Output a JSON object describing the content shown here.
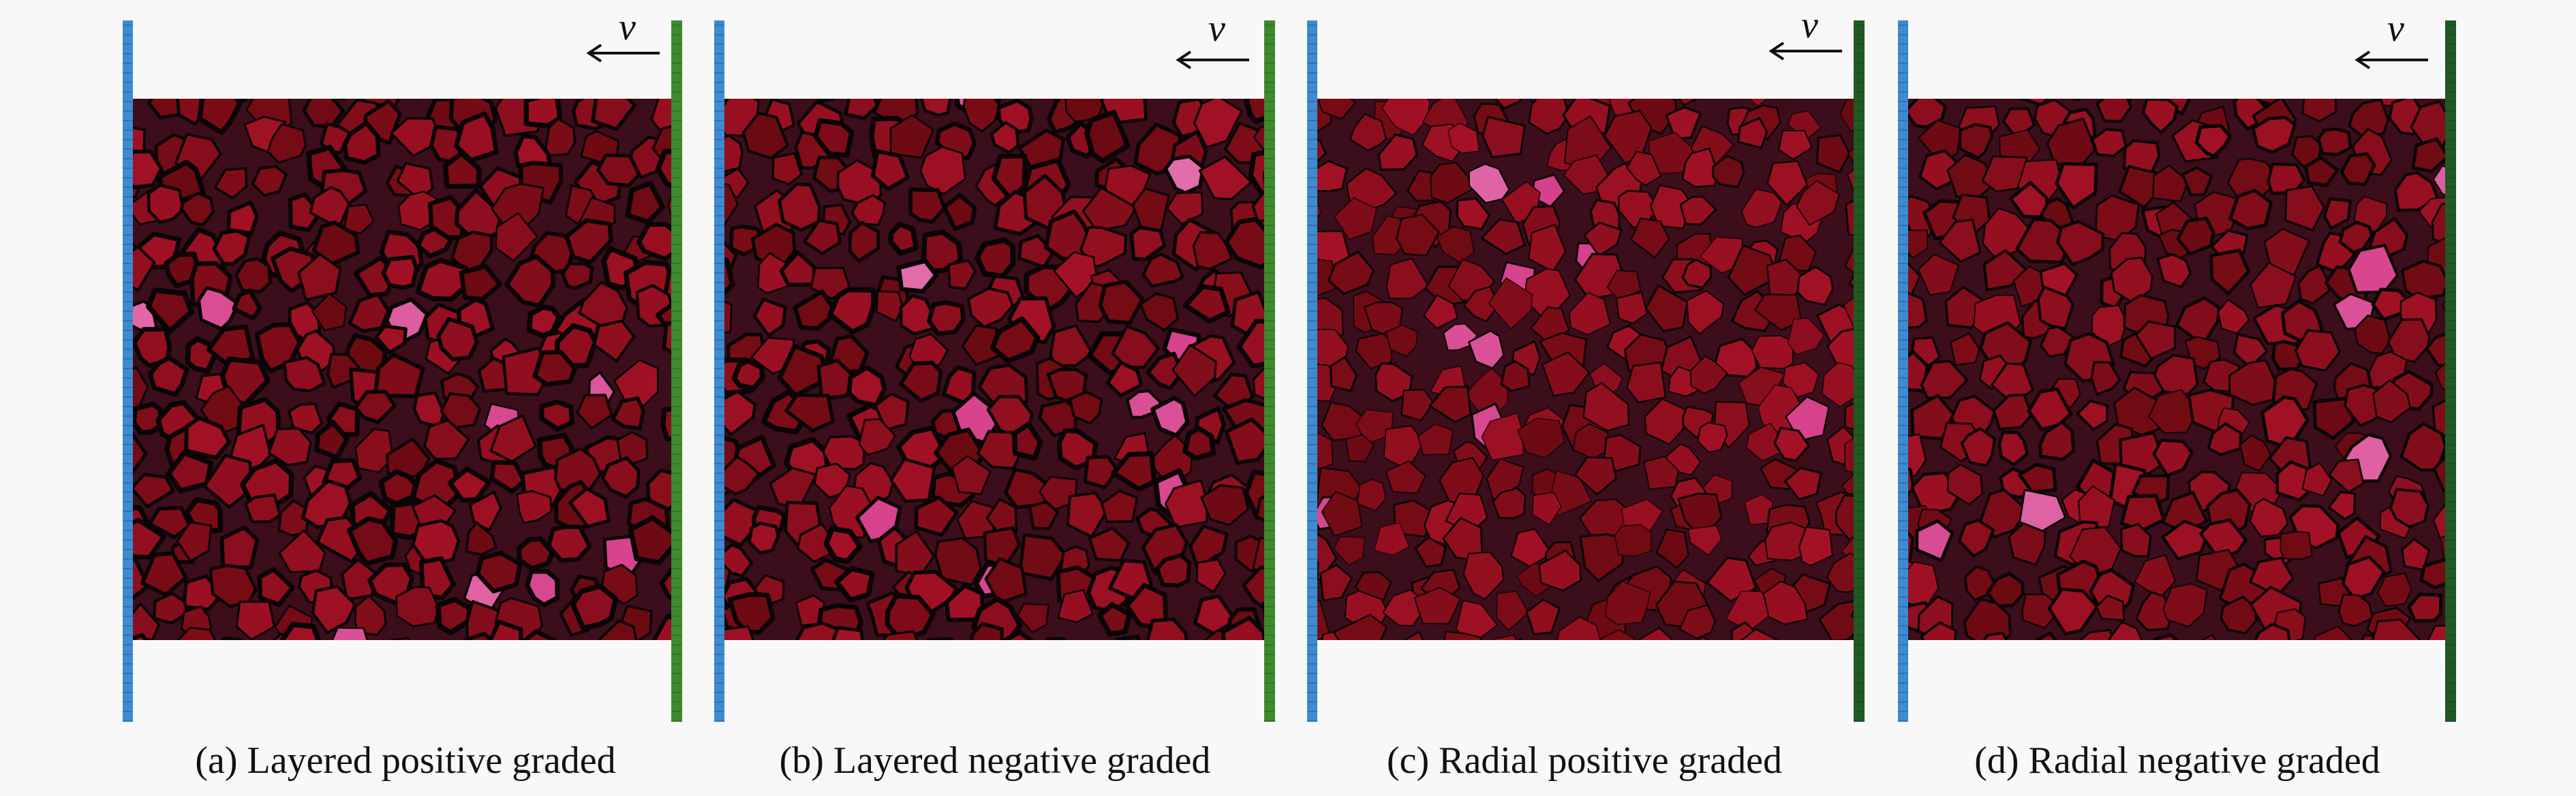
{
  "velocity_symbol": "v",
  "panels": [
    {
      "caption": "(a) Layered positive graded",
      "right_plate_color": "#3f8a2e"
    },
    {
      "caption": "(b) Layered negative graded",
      "right_plate_color": "#3f8a2e"
    },
    {
      "caption": "(c) Radial positive graded",
      "right_plate_color": "#1f5a26"
    },
    {
      "caption": "(d) Radial negative graded",
      "right_plate_color": "#1f5a26"
    }
  ],
  "colors": {
    "left_plate": "#3e8bd1",
    "matrix": "#3c0d1a",
    "grain_dark": "#6b0a12",
    "grain_bright": "#b5132c",
    "inclusion_pink": "#d6408a",
    "crack": "#0a0406"
  }
}
